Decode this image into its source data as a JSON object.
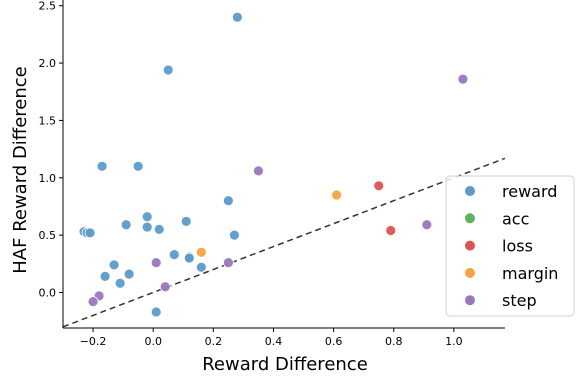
{
  "chart_data": {
    "type": "scatter",
    "xlabel": "Reward Difference",
    "ylabel": "HAF Reward Difference",
    "xlim": [
      -0.3,
      1.17
    ],
    "ylim": [
      -0.31,
      2.55
    ],
    "xticks": [
      -0.2,
      0.0,
      0.2,
      0.4,
      0.6,
      0.8,
      1.0
    ],
    "xtick_labels": [
      "−0.2",
      "0.0",
      "0.2",
      "0.4",
      "0.6",
      "0.8",
      "1.0"
    ],
    "yticks": [
      0.0,
      0.5,
      1.0,
      1.5,
      2.0,
      2.5
    ],
    "ytick_labels": [
      "0.0",
      "0.5",
      "1.0",
      "1.5",
      "2.0",
      "2.5"
    ],
    "grid": false,
    "legend_position": "right",
    "reference_line": {
      "style": "dashed",
      "color": "#333333",
      "points": [
        [
          -0.3,
          -0.3
        ],
        [
          1.17,
          1.17
        ]
      ]
    },
    "series": [
      {
        "name": "reward",
        "color": "#5b9bc9",
        "points": [
          [
            0.28,
            2.4
          ],
          [
            0.05,
            1.94
          ],
          [
            -0.17,
            1.1
          ],
          [
            -0.05,
            1.1
          ],
          [
            0.25,
            0.8
          ],
          [
            -0.02,
            0.66
          ],
          [
            0.11,
            0.62
          ],
          [
            -0.09,
            0.59
          ],
          [
            -0.02,
            0.57
          ],
          [
            0.02,
            0.55
          ],
          [
            -0.23,
            0.53
          ],
          [
            -0.22,
            0.52
          ],
          [
            -0.21,
            0.52
          ],
          [
            0.27,
            0.5
          ],
          [
            0.07,
            0.33
          ],
          [
            0.12,
            0.31
          ],
          [
            0.12,
            0.3
          ],
          [
            -0.13,
            0.24
          ],
          [
            0.16,
            0.22
          ],
          [
            -0.08,
            0.16
          ],
          [
            -0.16,
            0.14
          ],
          [
            -0.11,
            0.08
          ],
          [
            0.01,
            -0.17
          ]
        ]
      },
      {
        "name": "acc",
        "color": "#5fb35f",
        "points": []
      },
      {
        "name": "loss",
        "color": "#e05252",
        "points": [
          [
            0.75,
            0.93
          ],
          [
            0.79,
            0.54
          ]
        ]
      },
      {
        "name": "margin",
        "color": "#f7a340",
        "points": [
          [
            0.61,
            0.85
          ],
          [
            0.16,
            0.35
          ]
        ]
      },
      {
        "name": "step",
        "color": "#9b76bd",
        "points": [
          [
            1.03,
            1.86
          ],
          [
            0.35,
            1.06
          ],
          [
            0.91,
            0.59
          ],
          [
            0.01,
            0.26
          ],
          [
            0.25,
            0.26
          ],
          [
            0.04,
            0.05
          ],
          [
            -0.18,
            -0.03
          ],
          [
            -0.2,
            -0.08
          ]
        ]
      }
    ]
  }
}
